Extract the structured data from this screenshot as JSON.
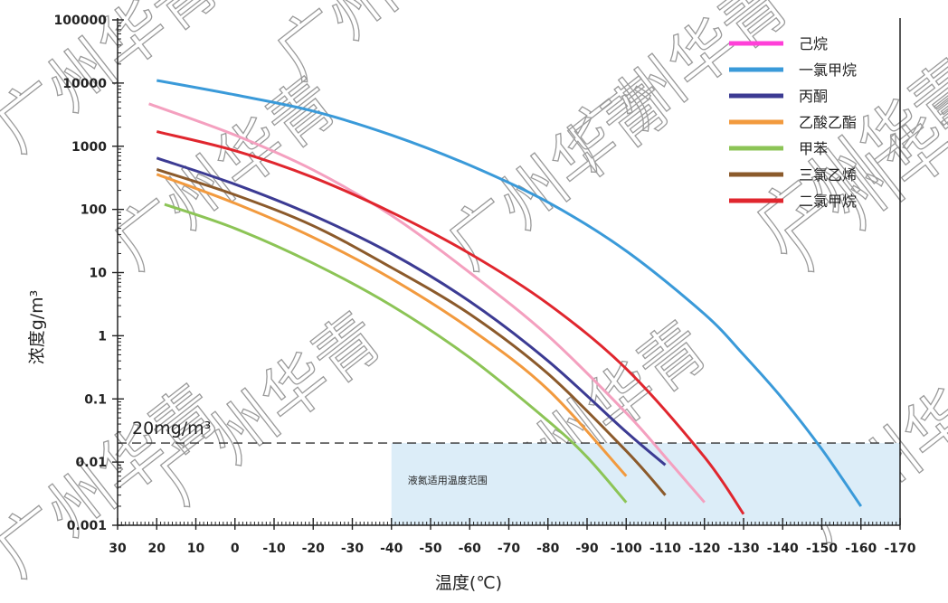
{
  "chart_data": {
    "type": "line",
    "ylabel": "浓度g/m³",
    "xlabel": "温度(℃)",
    "y_scale": "log",
    "ylim": [
      0.001,
      100000
    ],
    "xlim": [
      30,
      -170
    ],
    "x_ticks": [
      "30",
      "20",
      "10",
      "0",
      "-10",
      "-20",
      "-30",
      "-40",
      "-50",
      "-60",
      "-70",
      "-80",
      "-90",
      "-100",
      "-110",
      "-120",
      "-130",
      "-140",
      "-150",
      "-160",
      "-170"
    ],
    "y_ticks": [
      "100000",
      "10000",
      "1000",
      "100",
      "10",
      "1",
      "0.1",
      "0.01",
      "0.001"
    ],
    "grid": false,
    "legend_position": "top-right",
    "reference_line": {
      "value": 0.02,
      "label": "20mg/m³",
      "style": "dashed",
      "color": "#333333"
    },
    "region": {
      "x": [
        -40,
        -170
      ],
      "y": [
        0.001,
        0.02
      ],
      "label": "液氮适用温度范围",
      "color": "#dcedf8"
    },
    "series": [
      {
        "name": "己烷",
        "color": "#f4a0bf",
        "legend_color": "#ff3fd8",
        "points": [
          [
            22,
            4700
          ],
          [
            0,
            1500
          ],
          [
            -20,
            420
          ],
          [
            -40,
            80
          ],
          [
            -60,
            10
          ],
          [
            -80,
            1.0
          ],
          [
            -100,
            0.06
          ],
          [
            -110,
            0.012
          ],
          [
            -120,
            0.0023
          ]
        ]
      },
      {
        "name": "一氯甲烷",
        "color": "#3a9ad9",
        "legend_color": "#3a9ad9",
        "points": [
          [
            20,
            11000
          ],
          [
            0,
            6500
          ],
          [
            -20,
            3600
          ],
          [
            -40,
            1500
          ],
          [
            -60,
            500
          ],
          [
            -80,
            130
          ],
          [
            -100,
            22
          ],
          [
            -120,
            2.2
          ],
          [
            -130,
            0.5
          ],
          [
            -140,
            0.1
          ],
          [
            -150,
            0.016
          ],
          [
            -160,
            0.002
          ]
        ]
      },
      {
        "name": "丙酮",
        "color": "#3c3b93",
        "legend_color": "#3c3b93",
        "points": [
          [
            20,
            650
          ],
          [
            0,
            250
          ],
          [
            -20,
            80
          ],
          [
            -40,
            20
          ],
          [
            -60,
            3.5
          ],
          [
            -80,
            0.4
          ],
          [
            -100,
            0.03
          ],
          [
            -110,
            0.009
          ]
        ]
      },
      {
        "name": "乙酸乙酯",
        "color": "#f29a3e",
        "legend_color": "#f29a3e",
        "points": [
          [
            20,
            360
          ],
          [
            0,
            125
          ],
          [
            -20,
            36
          ],
          [
            -40,
            8
          ],
          [
            -60,
            1.3
          ],
          [
            -80,
            0.14
          ],
          [
            -100,
            0.006
          ]
        ]
      },
      {
        "name": "甲苯",
        "color": "#8cc456",
        "legend_color": "#8cc456",
        "points": [
          [
            18,
            120
          ],
          [
            0,
            50
          ],
          [
            -20,
            14
          ],
          [
            -40,
            3
          ],
          [
            -60,
            0.45
          ],
          [
            -80,
            0.045
          ],
          [
            -90,
            0.012
          ],
          [
            -100,
            0.0023
          ]
        ]
      },
      {
        "name": "三氯乙烯",
        "color": "#8b5a2b",
        "legend_color": "#8b5a2b",
        "points": [
          [
            20,
            430
          ],
          [
            0,
            170
          ],
          [
            -20,
            55
          ],
          [
            -40,
            12
          ],
          [
            -60,
            2.2
          ],
          [
            -80,
            0.25
          ],
          [
            -100,
            0.015
          ],
          [
            -110,
            0.003
          ]
        ]
      },
      {
        "name": "二氯甲烷",
        "color": "#e0262e",
        "legend_color": "#e0262e",
        "points": [
          [
            20,
            1700
          ],
          [
            0,
            850
          ],
          [
            -20,
            320
          ],
          [
            -40,
            90
          ],
          [
            -60,
            20
          ],
          [
            -80,
            3.2
          ],
          [
            -100,
            0.3
          ],
          [
            -120,
            0.012
          ],
          [
            -130,
            0.0015
          ]
        ]
      }
    ]
  },
  "watermark": {
    "text": "广州华青"
  }
}
